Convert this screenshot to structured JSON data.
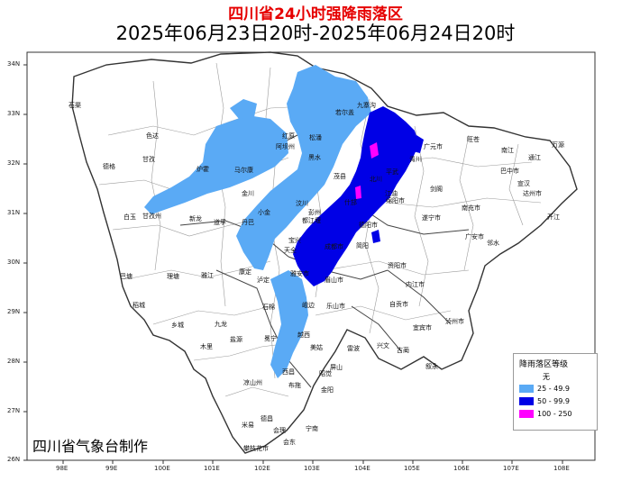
{
  "title": "四川省24小时强降雨落区",
  "subtitle": "2025年06月23日20时-2025年06月24日20时",
  "credit": "四川省气象台制作",
  "legend": {
    "title": "降雨落区等级",
    "items": [
      {
        "label": "无",
        "color": null
      },
      {
        "label": "25 - 49.9",
        "color": "#5aaaf5"
      },
      {
        "label": "50 - 99.9",
        "color": "#0000e6"
      },
      {
        "label": "100 - 250",
        "color": "#ff00ff"
      }
    ]
  },
  "axes": {
    "lon_ticks": [
      "98E",
      "99E",
      "100E",
      "101E",
      "102E",
      "103E",
      "104E",
      "105E",
      "106E",
      "107E",
      "108E"
    ],
    "lat_ticks": [
      "34N",
      "33N",
      "32N",
      "31N",
      "30N",
      "29N",
      "28N",
      "27N",
      "26N"
    ]
  },
  "place_labels": [
    "石渠",
    "阿坝州",
    "若尔盖",
    "九寨沟",
    "红原",
    "松潘",
    "平武",
    "青川",
    "广元市",
    "旺苍",
    "南江",
    "通江",
    "万源",
    "色达",
    "马尔康",
    "黑水",
    "茂县",
    "北川",
    "江油",
    "绵阳市",
    "剑阁",
    "巴中市",
    "宣汉",
    "德格",
    "甘孜",
    "炉霍",
    "金川",
    "小金",
    "汶川",
    "都江堰",
    "彭州",
    "什邡",
    "德阳市",
    "南充市",
    "达州市",
    "开江",
    "白玉",
    "甘孜州",
    "新龙",
    "道孚",
    "丹巴",
    "宝兴",
    "雅安市",
    "成都市",
    "简阳",
    "遂宁市",
    "广安市",
    "邻水",
    "巴塘",
    "理塘",
    "雅江",
    "康定",
    "泸定",
    "天全",
    "眉山市",
    "乐山市",
    "资阳市",
    "内江市",
    "稻城",
    "乡城",
    "九龙",
    "石棉",
    "峨边",
    "自贡市",
    "宜宾市",
    "泸州市",
    "木里",
    "盐源",
    "冕宁",
    "越西",
    "美姑",
    "雷波",
    "屏山",
    "兴文",
    "古蔺",
    "叙永",
    "凉山州",
    "西昌",
    "昭觉",
    "布拖",
    "金阳",
    "德昌",
    "米易",
    "会理",
    "攀枝花市",
    "会东",
    "宁南"
  ]
}
